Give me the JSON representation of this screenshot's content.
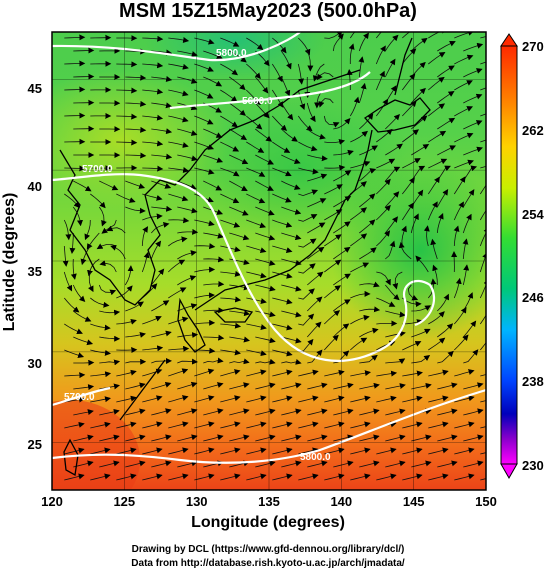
{
  "title": "MSM 15Z15May2023 (500.0hPa)",
  "xlabel": "Longitude (degrees)",
  "ylabel": "Latitude  (degrees)",
  "x_ticks": [
    "120",
    "125",
    "130",
    "135",
    "140",
    "145",
    "150"
  ],
  "y_ticks": [
    "25",
    "30",
    "35",
    "40",
    "45"
  ],
  "colorbar_ticks": [
    "270",
    "262",
    "254",
    "246",
    "238",
    "230"
  ],
  "contour_labels": [
    "5800.0",
    "5600.0",
    "5700.0",
    "5700.0",
    "5800.0"
  ],
  "credit_line1": "Drawing by DCL (https://www.gfd-dennou.org/library/dcl/)",
  "credit_line2": "Data from http://database.rish.kyoto-u.ac.jp/arch/jmadata/",
  "chart_data": {
    "type": "heatmap",
    "title": "MSM 15Z15May2023 (500.0hPa)",
    "xlabel": "Longitude (degrees)",
    "ylabel": "Latitude  (degrees)",
    "xlim": [
      120,
      150
    ],
    "ylim": [
      22.4,
      47.6
    ],
    "x_ticks": [
      120,
      125,
      130,
      135,
      140,
      145,
      150
    ],
    "y_ticks": [
      25,
      30,
      35,
      40,
      45
    ],
    "color_scale": {
      "min": 230,
      "max": 270,
      "ticks": [
        230,
        238,
        246,
        254,
        262,
        270
      ],
      "colors": [
        "#ff00ff",
        "#0000cc",
        "#00ccff",
        "#00cc44",
        "#ccee00",
        "#ff3300"
      ]
    },
    "grid": true,
    "overlays": [
      "streamlines",
      "height contours",
      "coastlines"
    ]
  },
  "colors": {
    "frame": "#000000",
    "contour": "#ffffff",
    "coast": "#000000"
  }
}
